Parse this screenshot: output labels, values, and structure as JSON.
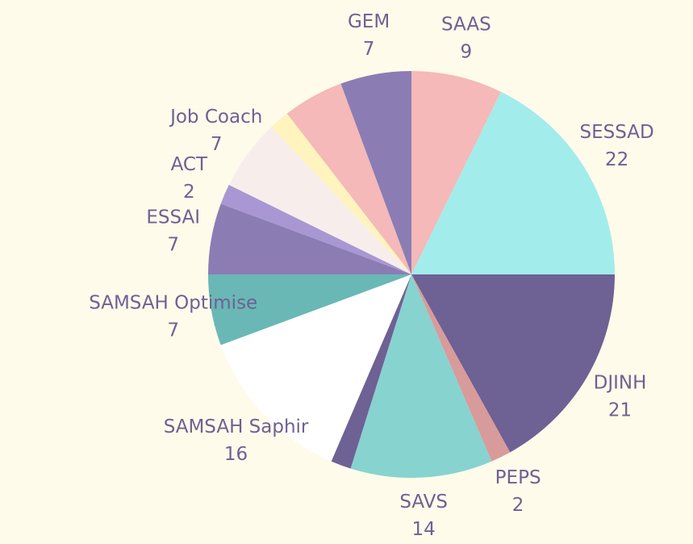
{
  "chart_data": {
    "type": "pie",
    "categories": [
      "SAAS",
      "SESSAD",
      "DJINH",
      "PEPS",
      "SAVS",
      null,
      "SAMSAH Saphir",
      "SAMSAH Optimise",
      "ESSAI",
      "ACT",
      "Job Coach",
      null,
      null,
      "GEM"
    ],
    "values": [
      9,
      22,
      21,
      2,
      14,
      2,
      16,
      7,
      7,
      2,
      7,
      2,
      6,
      7
    ],
    "colors": [
      "#f4b9b8",
      "#a3ecec",
      "#6e6194",
      "#d89b9b",
      "#87d3d0",
      "#6e6194",
      "#ffffff",
      "#69b8b5",
      "#8b7db3",
      "#a897d2",
      "#f7eeec",
      "#fff3be",
      "#f4b9b8",
      "#8b7db3"
    ]
  }
}
